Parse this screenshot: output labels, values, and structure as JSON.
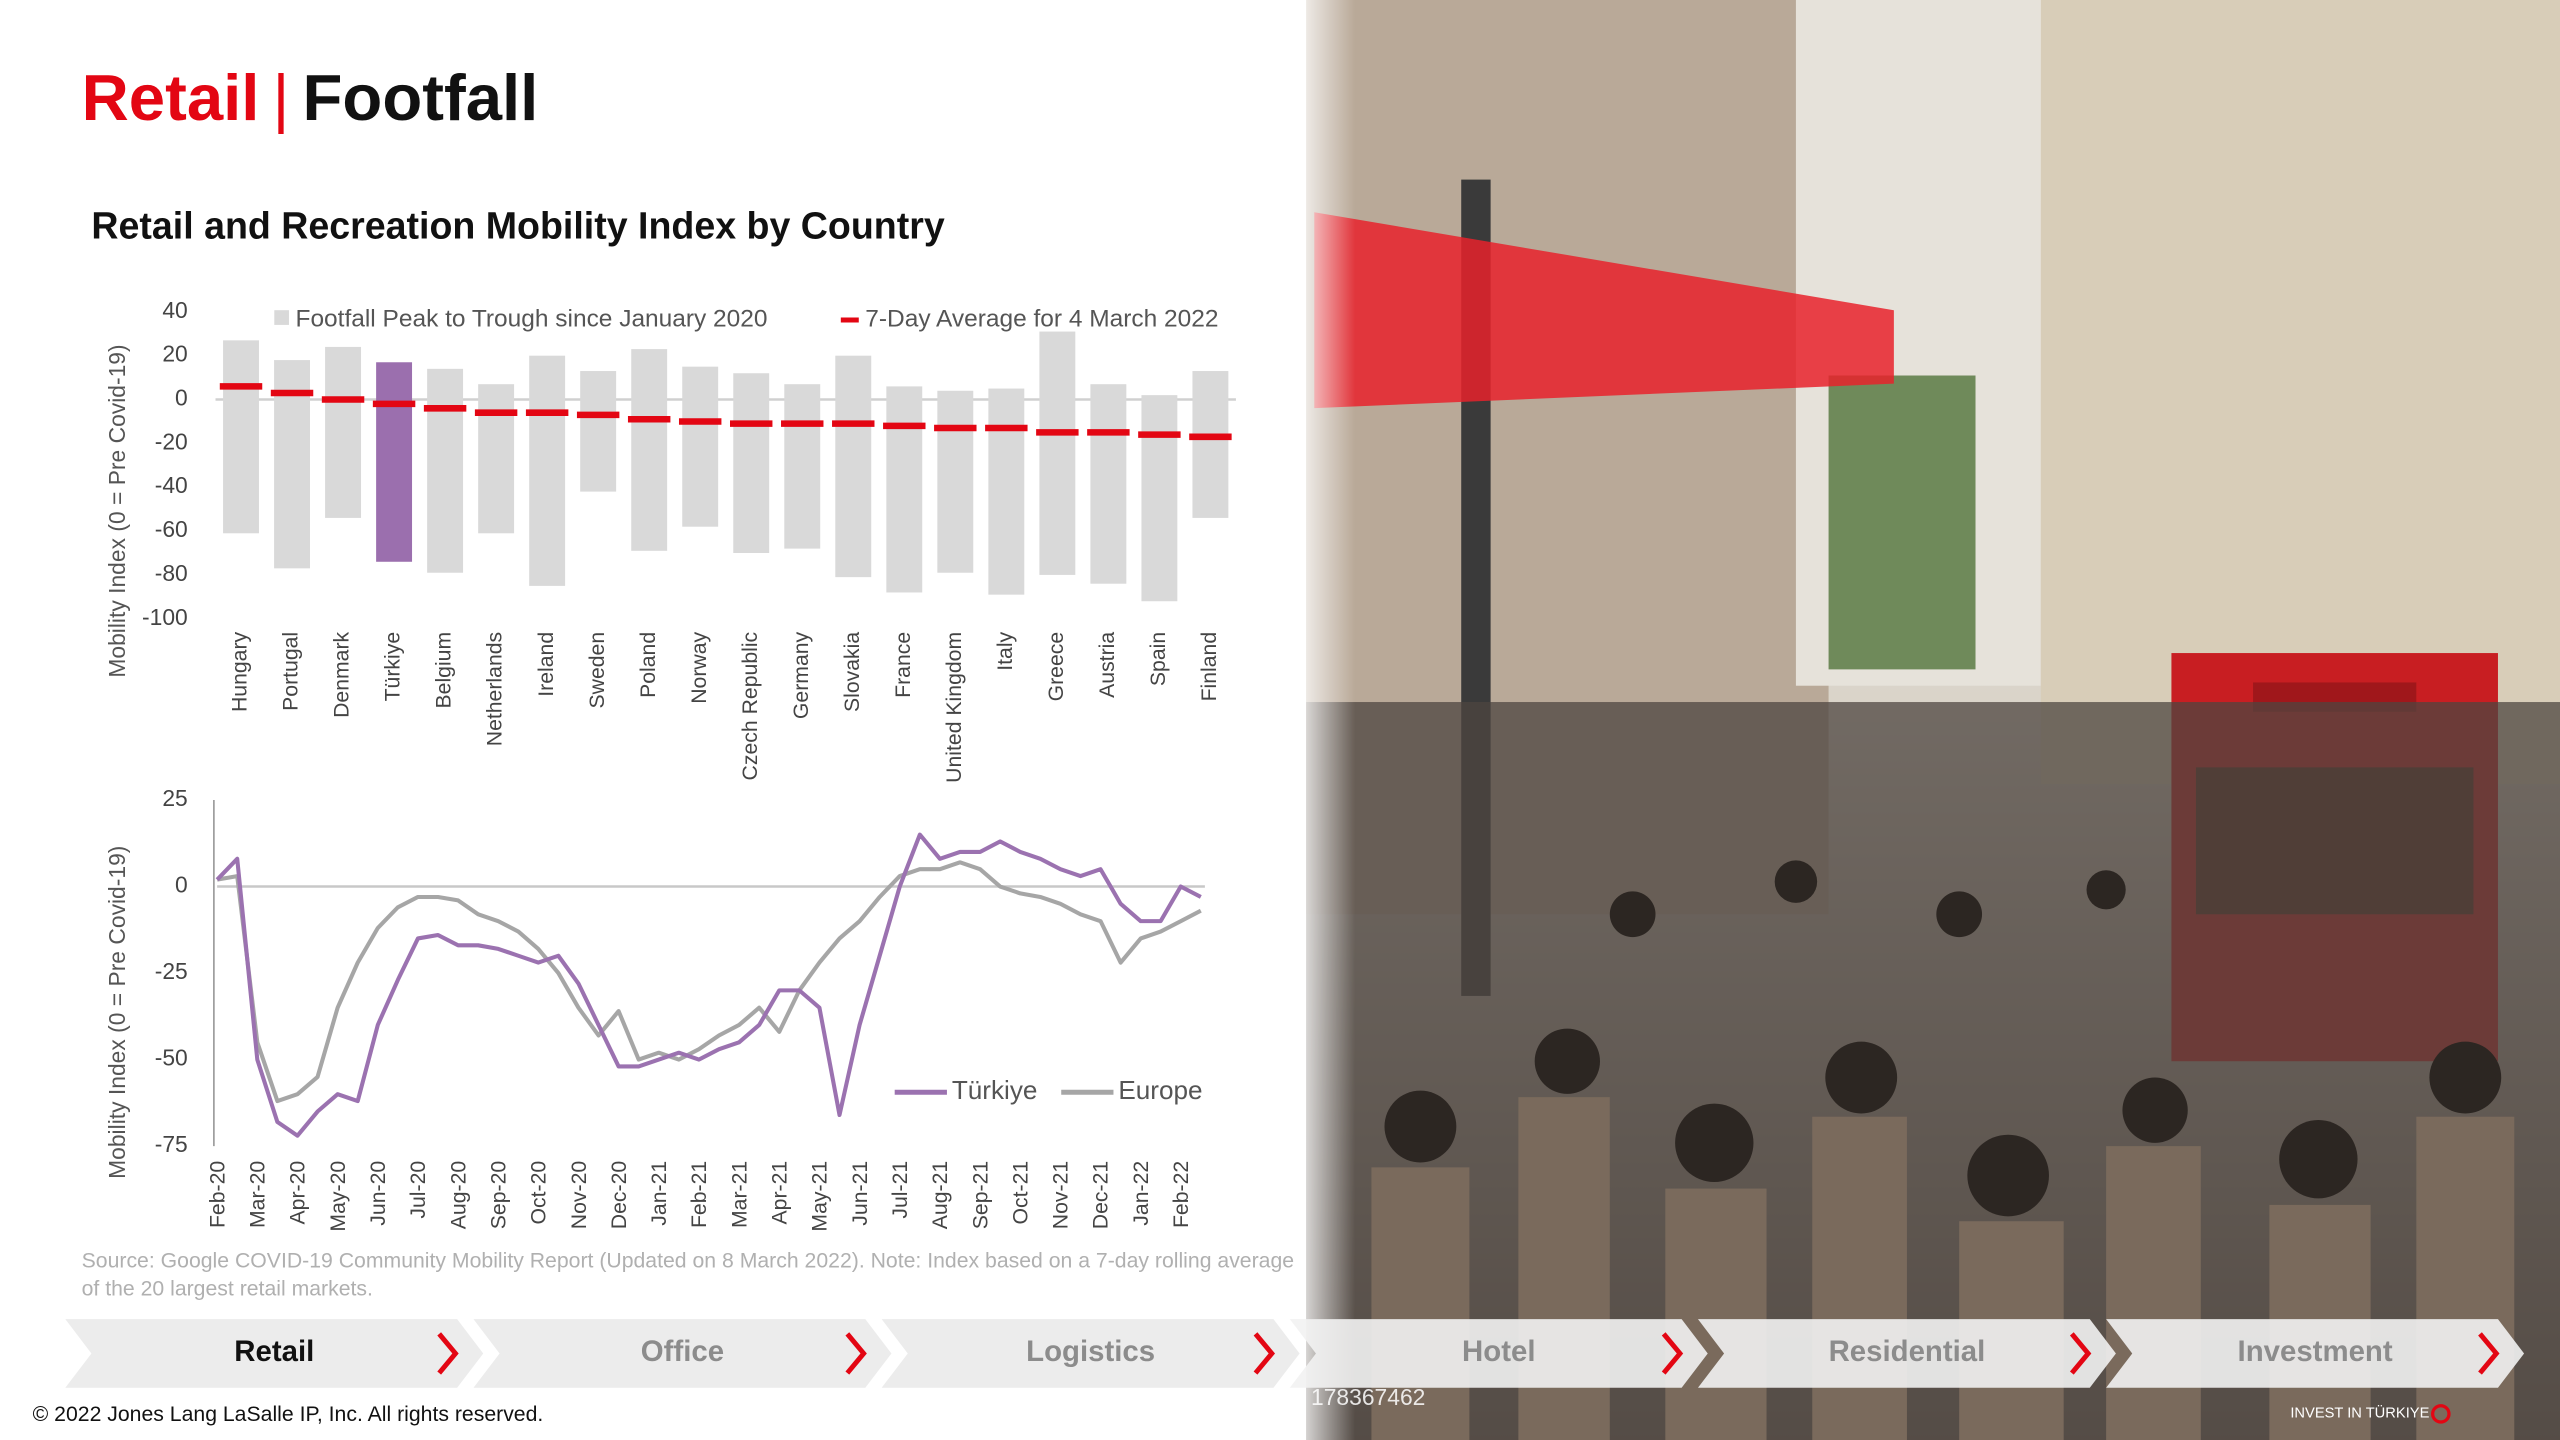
{
  "header": {
    "section": "Retail",
    "separator": "|",
    "topic": "Footfall"
  },
  "chart_data": [
    {
      "type": "range-bar",
      "title": "Retail and Recreation Mobility Index by Country",
      "y_label": "Mobility Index (0 = Pre Covid-19)",
      "categories": [
        "Hungary",
        "Portugal",
        "Denmark",
        "Türkiye",
        "Belgium",
        "Netherlands",
        "Ireland",
        "Sweden",
        "Poland",
        "Norway",
        "Czech Republic",
        "Germany",
        "Slovakia",
        "France",
        "United Kingdom",
        "Italy",
        "Greece",
        "Austria",
        "Spain",
        "Finland"
      ],
      "series": [
        {
          "name": "Footfall Peak to Trough since January 2020",
          "color": "#d9d9d9",
          "colors": [
            "#d9d9d9",
            "#d9d9d9",
            "#d9d9d9",
            "#9b6fae",
            "#d9d9d9",
            "#d9d9d9",
            "#d9d9d9",
            "#d9d9d9",
            "#d9d9d9",
            "#d9d9d9",
            "#d9d9d9",
            "#d9d9d9",
            "#d9d9d9",
            "#d9d9d9",
            "#d9d9d9",
            "#d9d9d9",
            "#d9d9d9",
            "#d9d9d9",
            "#d9d9d9",
            "#d9d9d9"
          ],
          "high": [
            27,
            18,
            24,
            17,
            14,
            7,
            20,
            13,
            23,
            15,
            12,
            7,
            20,
            6,
            4,
            5,
            31,
            7,
            2,
            13
          ],
          "low": [
            -61,
            -77,
            -54,
            -74,
            -79,
            -61,
            -85,
            -42,
            -69,
            -58,
            -70,
            -68,
            -81,
            -88,
            -79,
            -89,
            -80,
            -84,
            -92,
            -54
          ]
        },
        {
          "name": "7-Day Average for 4 March 2022",
          "color": "#e30613",
          "values": [
            6,
            3,
            0,
            -2,
            -4,
            -6,
            -6,
            -7,
            -9,
            -10,
            -11,
            -11,
            -11,
            -12,
            -13,
            -13,
            -15,
            -15,
            -16,
            -17
          ]
        }
      ],
      "ylim": [
        -100,
        40
      ],
      "yticks": [
        -100,
        -80,
        -60,
        -40,
        -20,
        0,
        20,
        40
      ]
    },
    {
      "type": "line",
      "y_label": "Mobility Index (0 = Pre Covid-19)",
      "x": [
        0,
        0.5,
        1,
        1.5,
        2,
        2.5,
        3,
        3.5,
        4,
        4.5,
        5,
        5.5,
        6,
        6.5,
        7,
        7.5,
        8,
        8.5,
        9,
        9.5,
        10,
        10.5,
        11,
        11.5,
        12,
        12.5,
        13,
        13.5,
        14,
        14.5,
        15,
        15.5,
        16,
        16.5,
        17,
        17.5,
        18,
        18.5,
        19,
        19.5,
        20,
        20.5,
        21,
        21.5,
        22,
        22.5,
        23,
        23.5,
        24,
        24.5
      ],
      "series": [
        {
          "name": "Türkiye",
          "color": "#9b72b0",
          "values": [
            2,
            8,
            -50,
            -68,
            -72,
            -65,
            -60,
            -62,
            -40,
            -27,
            -15,
            -14,
            -17,
            -17,
            -18,
            -20,
            -22,
            -20,
            -28,
            -40,
            -52,
            -52,
            -50,
            -48,
            -50,
            -47,
            -45,
            -40,
            -30,
            -30,
            -35,
            -66,
            -40,
            -20,
            0,
            15,
            8,
            10,
            10,
            13,
            10,
            8,
            5,
            3,
            5,
            -5,
            -10,
            -10,
            0,
            -3
          ]
        },
        {
          "name": "Europe",
          "color": "#a6a6a6",
          "values": [
            2,
            3,
            -45,
            -62,
            -60,
            -55,
            -35,
            -22,
            -12,
            -6,
            -3,
            -3,
            -4,
            -8,
            -10,
            -13,
            -18,
            -25,
            -35,
            -43,
            -36,
            -50,
            -48,
            -50,
            -47,
            -43,
            -40,
            -35,
            -42,
            -30,
            -22,
            -15,
            -10,
            -3,
            3,
            5,
            5,
            7,
            5,
            0,
            -2,
            -3,
            -5,
            -8,
            -10,
            -22,
            -15,
            -13,
            -10,
            -7
          ]
        }
      ],
      "xlim": [
        0,
        24.6
      ],
      "xticks": [
        {
          "value": 0,
          "label": "Feb-20"
        },
        {
          "value": 1,
          "label": "Mar-20"
        },
        {
          "value": 2,
          "label": "Apr-20"
        },
        {
          "value": 3,
          "label": "May-20"
        },
        {
          "value": 4,
          "label": "Jun-20"
        },
        {
          "value": 5,
          "label": "Jul-20"
        },
        {
          "value": 6,
          "label": "Aug-20"
        },
        {
          "value": 7,
          "label": "Sep-20"
        },
        {
          "value": 8,
          "label": "Oct-20"
        },
        {
          "value": 9,
          "label": "Nov-20"
        },
        {
          "value": 10,
          "label": "Dec-20"
        },
        {
          "value": 11,
          "label": "Jan-21"
        },
        {
          "value": 12,
          "label": "Feb-21"
        },
        {
          "value": 13,
          "label": "Mar-21"
        },
        {
          "value": 14,
          "label": "Apr-21"
        },
        {
          "value": 15,
          "label": "May-21"
        },
        {
          "value": 16,
          "label": "Jun-21"
        },
        {
          "value": 17,
          "label": "Jul-21"
        },
        {
          "value": 18,
          "label": "Aug-21"
        },
        {
          "value": 19,
          "label": "Sep-21"
        },
        {
          "value": 20,
          "label": "Oct-21"
        },
        {
          "value": 21,
          "label": "Nov-21"
        },
        {
          "value": 22,
          "label": "Dec-21"
        },
        {
          "value": 23,
          "label": "Jan-22"
        },
        {
          "value": 24,
          "label": "Feb-22"
        }
      ],
      "ylim": [
        -75,
        25
      ],
      "yticks": [
        -75,
        -50,
        -25,
        0,
        25
      ]
    }
  ],
  "source": [
    "Source: Google COVID-19 Community Mobility Report (Updated on 8 March 2022). Note: Index based on a 7-day rolling average",
    "of the 20 largest retail markets."
  ],
  "nav": {
    "tabs": [
      "Retail",
      "Office",
      "Logistics",
      "Hotel",
      "Residential",
      "Investment"
    ]
  },
  "photo": {
    "stock_id": "178367462",
    "logo": "INVEST IN TÜRKIYE"
  },
  "footer": "© 2022 Jones Lang LaSalle IP, Inc. All rights reserved."
}
